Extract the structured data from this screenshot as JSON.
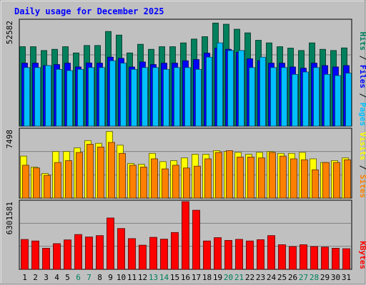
{
  "chart_data": {
    "type": "bar",
    "title": "Daily usage for December 2025",
    "days": [
      "1",
      "2",
      "3",
      "4",
      "5",
      "6",
      "7",
      "8",
      "9",
      "10",
      "11",
      "12",
      "13",
      "14",
      "15",
      "16",
      "17",
      "18",
      "19",
      "20",
      "21",
      "22",
      "23",
      "24",
      "25",
      "26",
      "27",
      "28",
      "29",
      "30",
      "31"
    ],
    "weekend_days": [
      "6",
      "7",
      "13",
      "14",
      "20",
      "21",
      "27",
      "28"
    ],
    "panels": [
      {
        "id": "hits",
        "max_label": "52582",
        "ymax": 52582,
        "series": [
          {
            "name": "Hits",
            "color": "#00805c",
            "values": [
              39600,
              39600,
              37700,
              38300,
              39600,
              36500,
              40200,
              40200,
              47200,
              45400,
              36500,
              40800,
              38300,
              39600,
              39600,
              41500,
              43400,
              44600,
              51400,
              50800,
              48300,
              46500,
              42800,
              41500,
              39600,
              38900,
              37700,
              41500,
              38300,
              37700,
              39000
            ]
          },
          {
            "name": "Files",
            "color": "#0000ff",
            "values": [
              31400,
              31400,
              30200,
              30700,
              31400,
              29500,
              31500,
              31400,
              34400,
              33800,
              29500,
              32000,
              30700,
              31400,
              31400,
              32600,
              33200,
              36400,
              38900,
              38300,
              36800,
              33600,
              32600,
              31400,
              31400,
              29500,
              28900,
              31400,
              30200,
              29500,
              30200
            ]
          },
          {
            "name": "Pages",
            "color": "#00bfff",
            "values": [
              29200,
              29200,
              30200,
              28300,
              27700,
              28300,
              29200,
              29200,
              32600,
              31400,
              28300,
              29200,
              29200,
              28300,
              29200,
              29200,
              28300,
              34400,
              41500,
              37700,
              37700,
              29200,
              34400,
              29200,
              29200,
              25800,
              27000,
              29200,
              25800,
              25200,
              26400
            ]
          }
        ],
        "legend": [
          "Pages",
          "Files",
          "Hits"
        ]
      },
      {
        "id": "visits",
        "max_label": "7498",
        "ymax": 7498,
        "series": [
          {
            "name": "Visits",
            "color": "#ffff00",
            "values": [
              4600,
              3400,
              2700,
              5100,
              5100,
              5500,
              6300,
              6000,
              7300,
              5800,
              3800,
              3700,
              4900,
              4000,
              4100,
              4400,
              4800,
              4800,
              5200,
              5100,
              5000,
              4800,
              5000,
              5100,
              4900,
              4900,
              5000,
              4300,
              3900,
              4100,
              4400
            ]
          },
          {
            "name": "Sites",
            "color": "#ff8000",
            "values": [
              3600,
              3300,
              2500,
              3900,
              4100,
              5000,
              5900,
              5600,
              6100,
              4900,
              3600,
              3400,
              4300,
              3200,
              3600,
              3300,
              3500,
              4300,
              5000,
              5200,
              4500,
              4500,
              4400,
              5000,
              4600,
              4300,
              4200,
              3100,
              3900,
              3900,
              4200
            ]
          }
        ],
        "legend": [
          "Sites",
          "Visits"
        ]
      },
      {
        "id": "kbytes",
        "max_label": "6301581",
        "ymax": 6301581,
        "series": [
          {
            "name": "KBytes",
            "color": "#ff0000",
            "values": [
              2780000,
              2640000,
              1960000,
              2390000,
              2740000,
              3240000,
              3010000,
              3140000,
              4780000,
              3800000,
              2860000,
              2250000,
              2980000,
              2810000,
              3430000,
              6301581,
              5500000,
              2640000,
              2950000,
              2690000,
              2790000,
              2640000,
              2760000,
              3140000,
              2290000,
              2120000,
              2290000,
              2120000,
              2070000,
              1960000,
              1920000
            ]
          }
        ],
        "legend": [
          "KBytes"
        ]
      }
    ],
    "grid": true
  }
}
